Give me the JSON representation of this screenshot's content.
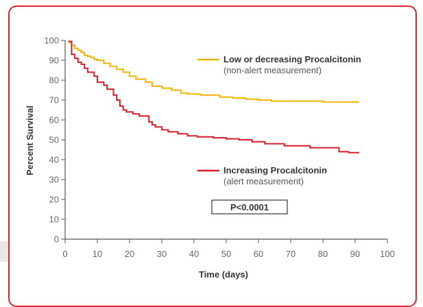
{
  "chart_data": {
    "type": "line",
    "xlabel": "Time (days)",
    "ylabel": "Percent Survival",
    "xlim": [
      0,
      100
    ],
    "ylim": [
      0,
      100
    ],
    "xticks": [
      0,
      10,
      20,
      30,
      40,
      50,
      60,
      70,
      80,
      90,
      100
    ],
    "yticks": [
      0,
      10,
      20,
      30,
      40,
      50,
      60,
      70,
      80,
      90,
      100
    ],
    "grid": false,
    "annotation": "P<0.0001",
    "series": [
      {
        "name": "Low or decreasing Procalcitonin",
        "subtitle": "(non-alert measurement)",
        "color": "#f2b300",
        "x": [
          1,
          2,
          3,
          4,
          5,
          6,
          7,
          8,
          9,
          10,
          12,
          14,
          16,
          18,
          20,
          22,
          25,
          27,
          30,
          33,
          36,
          38,
          42,
          46,
          48,
          52,
          56,
          60,
          64,
          70,
          75,
          80,
          85,
          91
        ],
        "y": [
          99,
          97.5,
          96,
          95,
          94,
          92.5,
          92,
          91.5,
          90.5,
          90,
          88.5,
          87,
          85.5,
          84,
          82,
          80.5,
          79,
          77,
          76,
          75,
          73.5,
          73,
          72.5,
          72.5,
          71.5,
          71,
          70.5,
          70,
          69.5,
          69.5,
          69.5,
          69,
          69,
          68.5
        ]
      },
      {
        "name": "Increasing Procalcitonin",
        "subtitle": "(alert measurement)",
        "color": "#d71e28",
        "x": [
          1,
          2,
          3,
          4,
          5,
          6,
          7,
          9,
          10,
          12,
          13,
          15,
          16,
          17,
          18,
          19,
          21,
          23,
          26,
          27,
          28,
          30,
          32,
          35,
          38,
          41,
          46,
          50,
          54,
          58,
          62,
          68,
          76,
          85,
          88,
          91
        ],
        "y": [
          99.5,
          93,
          91,
          89,
          88,
          86,
          84,
          82,
          79,
          77.5,
          75.5,
          72.5,
          70,
          67,
          65,
          64,
          63,
          62,
          59,
          57.5,
          56.5,
          55,
          54,
          53,
          52,
          51.5,
          51,
          50.5,
          50,
          49,
          48,
          47,
          46,
          44,
          43.5,
          43
        ]
      }
    ]
  }
}
